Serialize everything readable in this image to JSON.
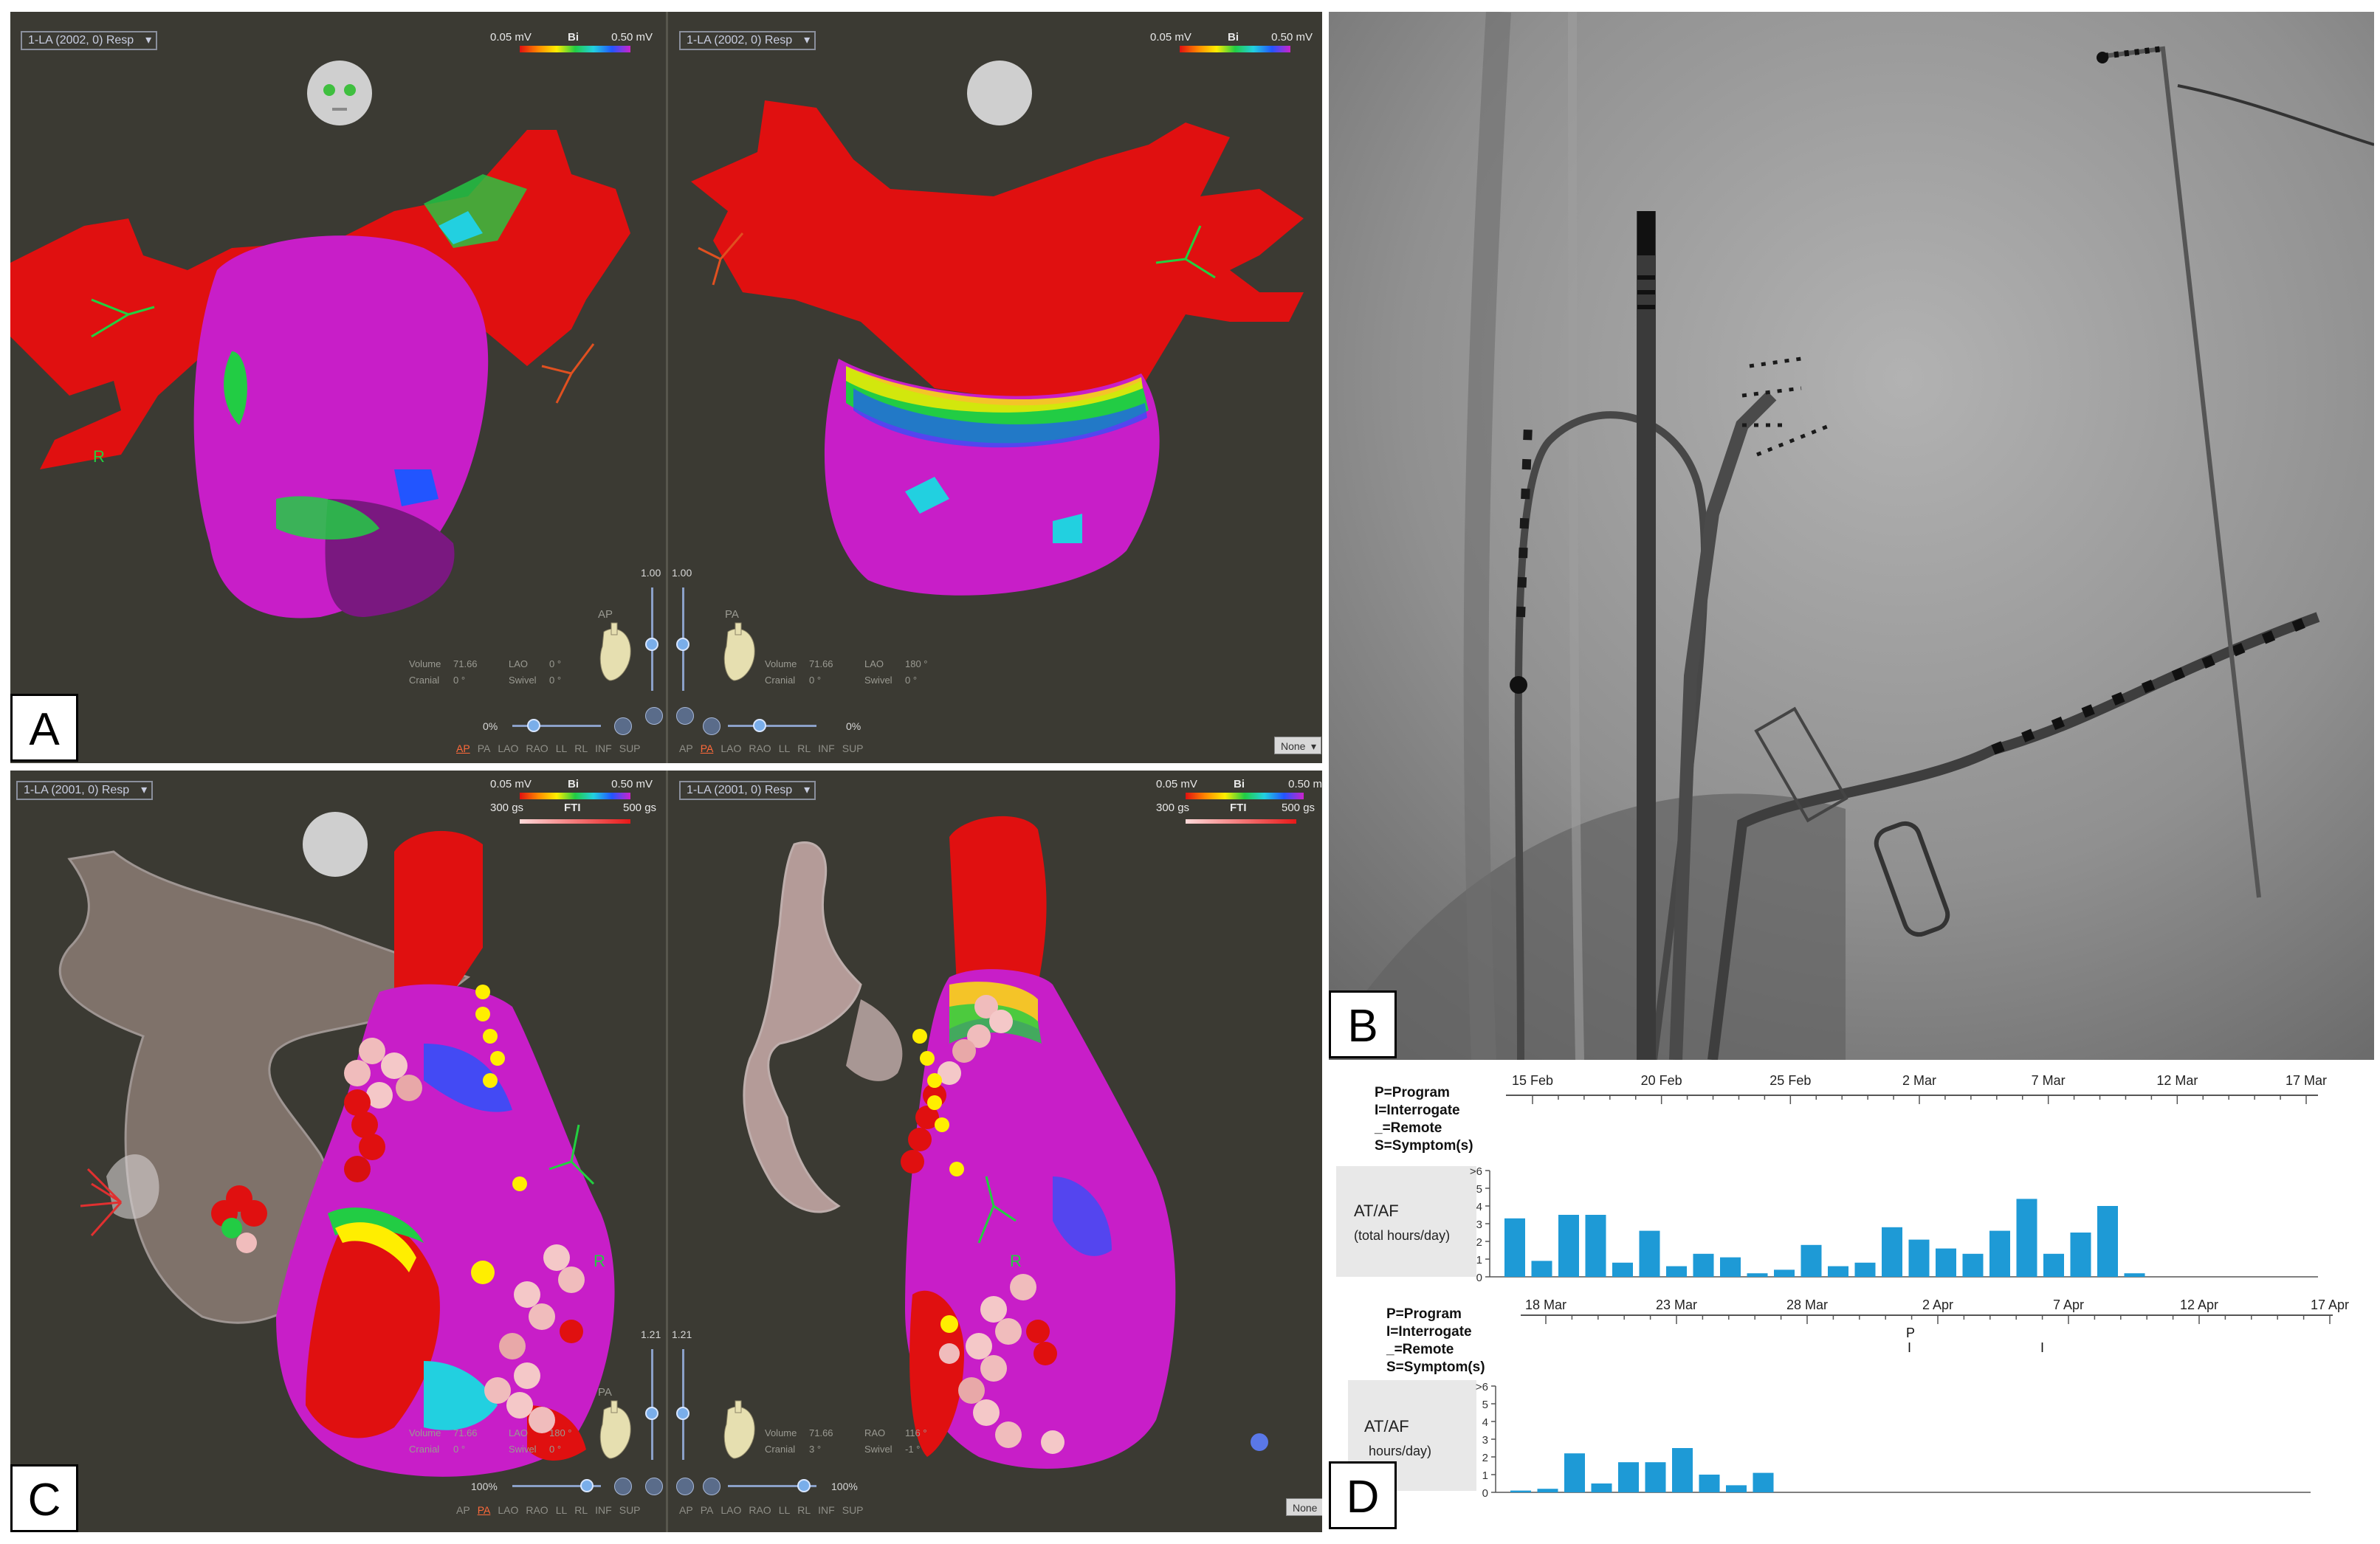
{
  "panel_a": {
    "left_view": {
      "dropdown": "1-LA (2002, 0) Resp",
      "scale_min": "0.05 mV",
      "scale_mode": "Bi",
      "scale_max": "0.50 mV",
      "orientation_label": "AP",
      "side_marker": "R",
      "info": {
        "volume_label": "Volume",
        "volume": "71.66",
        "cranial_label": "Cranial",
        "cranial": "0 °",
        "lao_label": "LAO",
        "lao": "0 °",
        "swivel_label": "Swivel",
        "swivel": "0 °"
      },
      "opacity_value": "1.00",
      "transparency_pct": "0%"
    },
    "right_view": {
      "dropdown": "1-LA (2002, 0) Resp",
      "scale_min": "0.05 mV",
      "scale_mode": "Bi",
      "scale_max": "0.50 mV",
      "orientation_label": "PA",
      "info": {
        "volume_label": "Volume",
        "volume": "71.66",
        "cranial_label": "Cranial",
        "cranial": "0 °",
        "lao_label": "LAO",
        "lao": "180 °",
        "swivel_label": "Swivel",
        "swivel": "0 °"
      },
      "opacity_value": "1.00",
      "transparency_pct": "0%"
    },
    "view_buttons_left": [
      "AP",
      "PA",
      "LAO",
      "RAO",
      "LL",
      "RL",
      "INF",
      "SUP"
    ],
    "view_buttons_left_active": "AP",
    "view_buttons_right": [
      "AP",
      "PA",
      "LAO",
      "RAO",
      "LL",
      "RL",
      "INF",
      "SUP"
    ],
    "view_buttons_right_active": "PA",
    "none_button": "None",
    "letter": "A"
  },
  "panel_b": {
    "letter": "B"
  },
  "panel_c": {
    "left_view": {
      "dropdown": "1-LA (2001, 0) Resp",
      "scale_min": "0.05 mV",
      "scale_mode": "Bi",
      "scale_max": "0.50 mV",
      "fti_min": "300 gs",
      "fti_label": "FTI",
      "fti_max": "500 gs",
      "orientation_label": "PA",
      "side_marker": "R",
      "info": {
        "volume_label": "Volume",
        "volume": "71.66",
        "cranial_label": "Cranial",
        "cranial": "0 °",
        "lao_label": "LAO",
        "lao": "180 °",
        "swivel_label": "Swivel",
        "swivel": "0 °"
      },
      "opacity_value": "1.21",
      "transparency_pct": "100%"
    },
    "right_view": {
      "dropdown": "1-LA (2001, 0) Resp",
      "scale_min": "0.05 mV",
      "scale_mode": "Bi",
      "scale_max": "0.50 m",
      "fti_min": "300 gs",
      "fti_label": "FTI",
      "fti_max": "500 gs",
      "side_marker": "R",
      "info": {
        "volume_label": "Volume",
        "volume": "71.66",
        "cranial_label": "Cranial",
        "cranial": "3 °",
        "lao_label": "RAO",
        "lao": "116 °",
        "swivel_label": "Swivel",
        "swivel": "-1 °"
      },
      "opacity_value": "1.21",
      "transparency_pct": "100%"
    },
    "view_buttons_left": [
      "AP",
      "PA",
      "LAO",
      "RAO",
      "LL",
      "RL",
      "INF",
      "SUP"
    ],
    "view_buttons_left_active": "PA",
    "view_buttons_right": [
      "AP",
      "PA",
      "LAO",
      "RAO",
      "LL",
      "RL",
      "INF",
      "SUP"
    ],
    "none_button": "None",
    "letter": "C"
  },
  "panel_d": {
    "letter": "D",
    "legend_lines": [
      "P=Program",
      "I=Interrogate",
      "_=Remote",
      "S=Symptom(s)"
    ],
    "chart_1": {
      "type": "bar",
      "dates_top": [
        "15 Feb",
        "20 Feb",
        "25 Feb",
        "2 Mar",
        "7 Mar",
        "12 Mar",
        "17 Mar"
      ],
      "dates_bottom": [
        "18 Mar",
        "23 Mar",
        "28 Mar",
        "2 Apr",
        "7 Apr",
        "12 Apr",
        "17 Apr"
      ],
      "label_title": "AT/AF",
      "label_sub": "(total hours/day)",
      "y_ticks": [
        "0",
        "1",
        "2",
        "3",
        "4",
        "5",
        ">6"
      ],
      "ylim": [
        0,
        6
      ],
      "values": [
        3.3,
        0.9,
        3.5,
        3.5,
        0.8,
        2.6,
        0.6,
        1.3,
        1.1,
        0.2,
        0.4,
        1.8,
        0.6,
        0.8,
        2.8,
        2.1,
        1.6,
        1.3,
        2.6,
        4.4,
        1.3,
        2.5,
        4.0,
        0.2
      ]
    },
    "chart_2": {
      "type": "bar",
      "marker_p": "P",
      "marker_i1": "I",
      "marker_i2": "I",
      "label_title": "AT/AF",
      "label_sub": "hours/day)",
      "y_ticks": [
        "0",
        "1",
        "2",
        "3",
        "4",
        "5",
        ">6"
      ],
      "ylim": [
        0,
        6
      ],
      "values": [
        0.1,
        0.2,
        2.2,
        0.5,
        1.7,
        1.7,
        2.5,
        1.0,
        0.4,
        1.1
      ]
    }
  },
  "colors": {
    "map_background": "#3b3a33",
    "scar_red": "#e01010",
    "healthy_purple": "#c81ec8",
    "bar_blue": "#1e9ad6"
  }
}
